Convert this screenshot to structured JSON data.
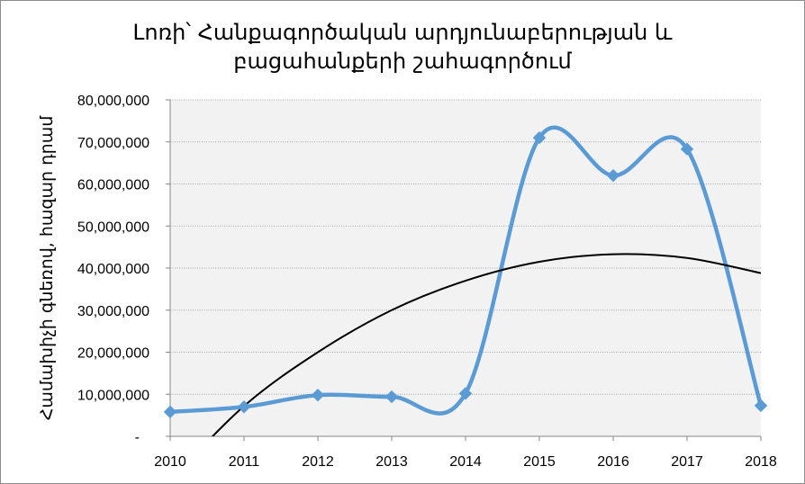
{
  "chart_data": {
    "type": "line",
    "title_lines": [
      "Լոռի՝ Հանքագործական արդյունաբերության և",
      "բացահանքերի շահագործում"
    ],
    "ylabel": "Համախիչի գնեռով, հազար դրամ",
    "xlabel": "",
    "categories": [
      "2010",
      "2011",
      "2012",
      "2013",
      "2014",
      "2015",
      "2016",
      "2017",
      "2018"
    ],
    "series": [
      {
        "values": [
          5800000,
          7000000,
          9800000,
          9400000,
          10200000,
          71000000,
          62000000,
          68300000,
          7300000
        ],
        "color": "#5b9bd5",
        "marker": "diamond"
      }
    ],
    "trendline": {
      "type": "polynomial",
      "color": "#000000",
      "values_at_categories": [
        -10500000,
        7200000,
        20000000,
        30000000,
        37000000,
        41500000,
        43300000,
        42400000,
        38800000
      ],
      "start_x": 2010.53
    },
    "ylim": [
      0,
      80000000
    ],
    "yticks": [
      0,
      10000000,
      20000000,
      30000000,
      40000000,
      50000000,
      60000000,
      70000000,
      80000000
    ],
    "ytick_labels": [
      "-",
      "10,000,000",
      "20,000,000",
      "30,000,000",
      "40,000,000",
      "50,000,000",
      "60,000,000",
      "70,000,000",
      "80,000,000"
    ],
    "grid": true,
    "legend": "none",
    "plot_background": "#f2f2f2"
  }
}
